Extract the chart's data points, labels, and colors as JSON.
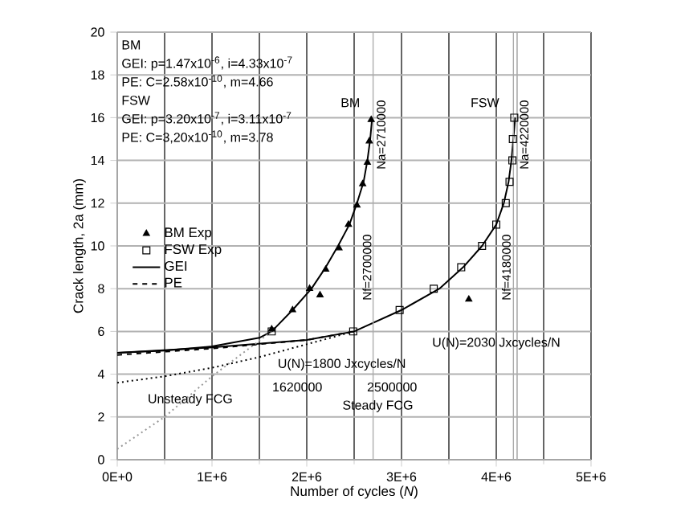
{
  "chart_data": {
    "type": "line",
    "xlabel": "Number of cycles (*N*)",
    "ylabel": "Crack length, 2a (mm)",
    "xlim": [
      0,
      5000000
    ],
    "ylim": [
      0,
      20
    ],
    "xticks": [
      {
        "value": 0,
        "label": "0E+0"
      },
      {
        "value": 1000000,
        "label": "1E+6"
      },
      {
        "value": 2000000,
        "label": "2E+6"
      },
      {
        "value": 3000000,
        "label": "3E+6"
      },
      {
        "value": 4000000,
        "label": "4E+6"
      },
      {
        "value": 5000000,
        "label": "5E+6"
      }
    ],
    "yticks": [
      0,
      2,
      4,
      6,
      8,
      10,
      12,
      14,
      16,
      18,
      20
    ],
    "grid": true,
    "legend": "left",
    "series": [
      {
        "name": "BM Exp",
        "type": "scatter",
        "marker": "triangle",
        "color": "#000000",
        "x": [
          1630000,
          1850000,
          2030000,
          2140000,
          2200000,
          2340000,
          2440000,
          2530000,
          2590000,
          2640000,
          2660000,
          2680000,
          3710000
        ],
        "values": [
          6.1,
          7.0,
          8.0,
          7.7,
          8.9,
          9.9,
          11.0,
          11.9,
          12.9,
          13.9,
          14.9,
          15.9,
          7.5
        ]
      },
      {
        "name": "FSW Exp",
        "type": "scatter",
        "marker": "square",
        "color": "#000000",
        "x": [
          1630000,
          2490000,
          2980000,
          3340000,
          3630000,
          3850000,
          4000000,
          4100000,
          4140000,
          4170000,
          4175000,
          4190000
        ],
        "values": [
          6.0,
          6.0,
          7.0,
          8.0,
          9.0,
          10.0,
          11.0,
          12.0,
          13.0,
          14.0,
          15.0,
          16.0
        ]
      },
      {
        "name": "GEI",
        "line_style": "solid",
        "color": "#000000",
        "x": [
          0,
          500000,
          1000000,
          1500000,
          1630000,
          1850000,
          2050000,
          2200000,
          2330000,
          2450000,
          2530000,
          2600000,
          2640000,
          2670000,
          2690000
        ],
        "values": [
          5.0,
          5.1,
          5.3,
          5.7,
          6.0,
          7.0,
          8.0,
          9.0,
          10.0,
          11.0,
          12.0,
          13.0,
          14.0,
          15.0,
          16.0
        ]
      },
      {
        "line_style": "solid",
        "color": "#000000",
        "x": [
          0,
          1000000,
          2000000,
          2500000,
          3000000,
          3400000,
          3650000,
          3850000,
          4000000,
          4080000,
          4130000,
          4160000,
          4180000,
          4200000
        ],
        "values": [
          5.0,
          5.25,
          5.6,
          6.0,
          7.0,
          8.0,
          9.0,
          10.0,
          11.0,
          12.0,
          13.0,
          14.0,
          15.0,
          16.0
        ]
      },
      {
        "name": "PE",
        "line_style": "dashed",
        "color": "#000000",
        "x": [
          0,
          500000,
          1000000,
          1500000,
          2000000,
          2500000
        ],
        "values": [
          4.9,
          5.05,
          5.2,
          5.4,
          5.6,
          6.0
        ]
      },
      {
        "line_style": "dotted",
        "color": "#000000",
        "x": [
          0,
          500000,
          1000000,
          1500000,
          2000000,
          2500000
        ],
        "values": [
          3.6,
          3.9,
          4.3,
          4.8,
          5.4,
          6.0
        ]
      },
      {
        "line_style": "dotted",
        "color": "#999999",
        "x": [
          0,
          500000,
          1000000,
          1630000
        ],
        "values": [
          0.5,
          2.0,
          3.9,
          6.0
        ]
      }
    ],
    "ref_lines": [
      {
        "axis": "x",
        "value": 2700000,
        "color": "#aaaaaa"
      },
      {
        "axis": "x",
        "value": 4180000,
        "color": "#aaaaaa"
      },
      {
        "axis": "x",
        "value": 4220000,
        "color": "#aaaaaa"
      }
    ],
    "annotations": [
      "BM",
      "GEI: p=1.47x10$^{-6}$,  i=4.33x10$^{-7}$",
      "PE:  C=2.58x10$^{-10}$, m=4.66",
      "FSW",
      "GEI: p=3.20x10$^{-7}$,  i=3.11x10$^{-7}$",
      "PE: C=3,20x10$^{-10}$, m=3.78",
      "BM",
      "FSW",
      "U(N)=2030 Jxcycles/N",
      "U(N)=1800 Jxcycles/N",
      "1620000",
      "2500000",
      "Steady FCG",
      "Unsteady FCG",
      "Nf=2700000",
      "Na=2710000",
      "Nf=4180000",
      "Na=4220000"
    ]
  }
}
